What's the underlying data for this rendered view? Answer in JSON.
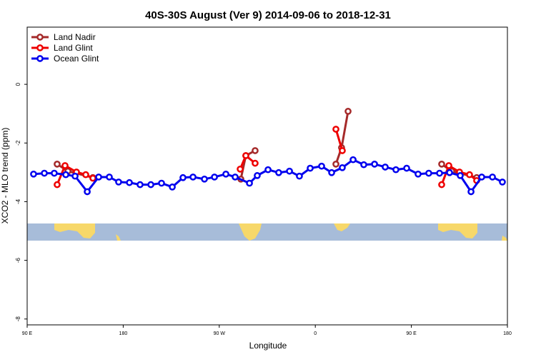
{
  "chart_data": {
    "type": "line",
    "title": "40S-30S August (Ver 9)   2014-09-06 to 2018-12-31",
    "x_label": "Longitude",
    "y_label": "XCO2 - MLO trend (ppm)",
    "xlim": [
      90,
      540
    ],
    "ylim": [
      -8.2,
      1.95
    ],
    "xticks": [
      {
        "value": 90,
        "label": "90 E"
      },
      {
        "value": 180,
        "label": "180"
      },
      {
        "value": 270,
        "label": "90 W"
      },
      {
        "value": 360,
        "label": "0"
      },
      {
        "value": 450,
        "label": "90 E"
      },
      {
        "value": 540,
        "label": "180"
      }
    ],
    "yticks": [
      -8,
      -6,
      -4,
      -2,
      0
    ],
    "legend": "top-left",
    "series": [
      {
        "name": "Land Nadir",
        "color": "#a52a2a",
        "x": [
          118.1,
          128.2,
          151.6,
          null,
          290.2,
          294.9,
          303.6,
          null,
          379.3,
          384.6,
          390.7,
          null,
          478.4,
          487.8,
          511.2
        ],
        "values": [
          -2.72,
          -2.96,
          -3.18,
          null,
          -3.23,
          -2.43,
          -2.26,
          null,
          -2.72,
          -2.16,
          -0.92,
          null,
          -2.72,
          -2.96,
          -3.18
        ]
      },
      {
        "name": "Land Glint",
        "color": "#ee0000",
        "x": [
          118.1,
          125.5,
          136.2,
          144.9,
          151.6,
          null,
          289.6,
          294.9,
          303.6,
          null,
          379.3,
          385.3,
          null,
          478.4,
          485.1,
          495.1,
          504.5,
          511.2
        ],
        "values": [
          -3.42,
          -2.77,
          -2.99,
          -3.08,
          -3.2,
          null,
          -2.89,
          -2.43,
          -2.69,
          null,
          -1.53,
          -2.26,
          null,
          -3.42,
          -2.77,
          -2.99,
          -3.08,
          -3.28
        ]
      },
      {
        "name": "Ocean Glint",
        "color": "#0000ee",
        "x": [
          96,
          106.1,
          115.4,
          126.2,
          134.9,
          146.3,
          157,
          167,
          175.7,
          185.8,
          195.8,
          205.9,
          215.9,
          226,
          236,
          245.4,
          256.1,
          265.5,
          276.2,
          284.9,
          298.3,
          305.6,
          315.7,
          325.7,
          335.8,
          345.1,
          355.2,
          365.9,
          375.3,
          385.3,
          395.4,
          405.4,
          415.5,
          425.5,
          435.5,
          445.6,
          456.3,
          466.3,
          476.4,
          485.8,
          495.8,
          505.9,
          515.9,
          526,
          535.3
        ],
        "values": [
          -3.06,
          -3.03,
          -3.03,
          -3.08,
          -3.13,
          -3.66,
          -3.16,
          -3.16,
          -3.33,
          -3.35,
          -3.42,
          -3.42,
          -3.37,
          -3.5,
          -3.18,
          -3.16,
          -3.23,
          -3.16,
          -3.06,
          -3.16,
          -3.37,
          -3.11,
          -2.91,
          -3.01,
          -2.96,
          -3.13,
          -2.86,
          -2.79,
          -3.01,
          -2.84,
          -2.57,
          -2.74,
          -2.72,
          -2.82,
          -2.91,
          -2.86,
          -3.06,
          -3.03,
          -3.03,
          -3.01,
          -3.11,
          -3.66,
          -3.16,
          -3.16,
          -3.33
        ]
      }
    ]
  }
}
